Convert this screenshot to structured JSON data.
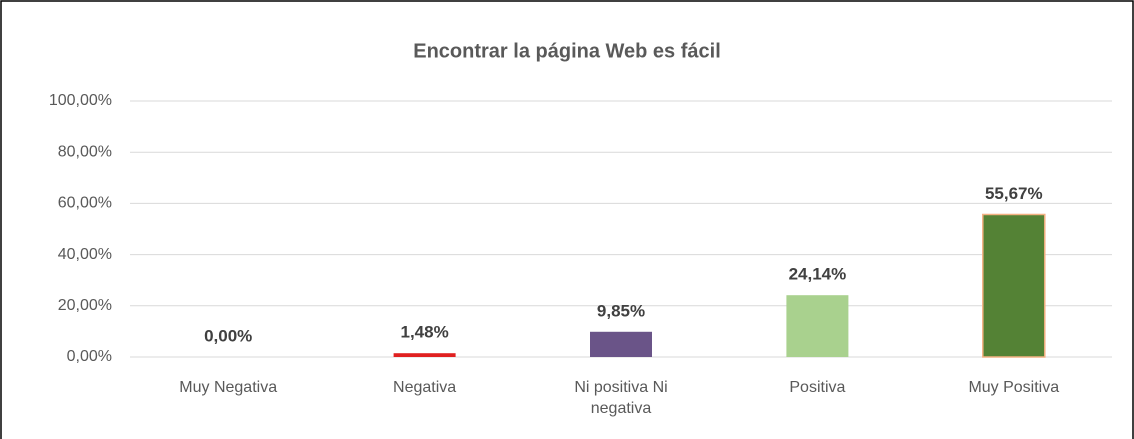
{
  "chart_data": {
    "type": "bar",
    "title": "Encontrar la página Web es fácil",
    "categories": [
      "Muy Negativa",
      "Negativa",
      "Ni positiva Ni negativa",
      "Positiva",
      "Muy Positiva"
    ],
    "values": [
      0,
      1.48,
      9.85,
      24.14,
      55.67
    ],
    "value_labels": [
      "0,00%",
      "1,48%",
      "9,85%",
      "24,14%",
      "55,67%"
    ],
    "colors": [
      "#4472c4",
      "#e02020",
      "#6a5488",
      "#a9d18e",
      "#548235"
    ],
    "ylim": [
      0,
      100
    ],
    "yticks": [
      {
        "value": 0,
        "label": "0,00%"
      },
      {
        "value": 20,
        "label": "20,00%"
      },
      {
        "value": 40,
        "label": "40,00%"
      },
      {
        "value": 60,
        "label": "60,00%"
      },
      {
        "value": 80,
        "label": "80,00%"
      },
      {
        "value": 100,
        "label": "100,00%"
      }
    ],
    "grid": true
  }
}
